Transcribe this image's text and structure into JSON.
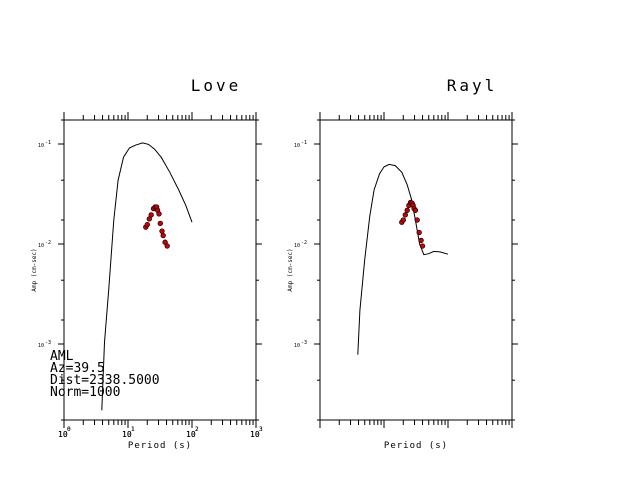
{
  "chart_data": [
    {
      "type": "line",
      "title": "Love",
      "xlabel": "Period (s)",
      "ylabel": "Amp (cm-sec)",
      "x_scale": "log",
      "y_scale": "log",
      "xlim": [
        1,
        1000
      ],
      "ylim": [
        0.0002,
        0.2
      ],
      "x_ticks": [
        "10",
        "10",
        "10",
        "10"
      ],
      "x_tick_exponents": [
        "0",
        "1",
        "2",
        "3"
      ],
      "y_ticks": [
        "10",
        "10",
        "10"
      ],
      "y_tick_exponents": [
        "-1",
        "-2",
        "-3"
      ],
      "series": [
        {
          "kind": "line",
          "color": "#000000",
          "points": [
            [
              3.9,
              0.00025
            ],
            [
              4.3,
              0.0012
            ],
            [
              5.0,
              0.004
            ],
            [
              6.0,
              0.02
            ],
            [
              7.0,
              0.05
            ],
            [
              8.5,
              0.085
            ],
            [
              10.5,
              0.105
            ],
            [
              13,
              0.112
            ],
            [
              17,
              0.118
            ],
            [
              21,
              0.114
            ],
            [
              26,
              0.102
            ],
            [
              33,
              0.085
            ],
            [
              45,
              0.06
            ],
            [
              62,
              0.04
            ],
            [
              80,
              0.028
            ],
            [
              100,
              0.019
            ]
          ]
        },
        {
          "kind": "points",
          "color": "#cc0000",
          "points": [
            [
              19,
              0.017
            ],
            [
              20,
              0.018
            ],
            [
              21.5,
              0.0205
            ],
            [
              23,
              0.0225
            ],
            [
              25,
              0.026
            ],
            [
              26.5,
              0.027
            ],
            [
              28,
              0.027
            ],
            [
              29,
              0.025
            ],
            [
              30.5,
              0.023
            ],
            [
              32,
              0.0185
            ],
            [
              34,
              0.0155
            ],
            [
              35.5,
              0.014
            ],
            [
              38,
              0.012
            ],
            [
              41,
              0.011
            ]
          ]
        }
      ],
      "annotations": [
        "AML",
        "Az=39.5",
        "Dist=2338.5000",
        "Norm=1000"
      ]
    },
    {
      "type": "line",
      "title": "Rayl",
      "xlabel": "Period (s)",
      "ylabel": "Amp (cm-sec)",
      "x_scale": "log",
      "y_scale": "log",
      "xlim": [
        1,
        1000
      ],
      "ylim": [
        0.0002,
        0.2
      ],
      "x_ticks": [
        "10",
        "10",
        "10",
        "10"
      ],
      "x_tick_exponents": [
        "0",
        "1",
        "2",
        "3"
      ],
      "y_ticks": [
        "10",
        "10",
        "10"
      ],
      "y_tick_exponents": [
        "-1",
        "-2",
        "-3"
      ],
      "series": [
        {
          "kind": "line",
          "color": "#000000",
          "points": [
            [
              3.9,
              0.0009
            ],
            [
              4.2,
              0.0025
            ],
            [
              5.0,
              0.008
            ],
            [
              6.0,
              0.022
            ],
            [
              7.0,
              0.04
            ],
            [
              8.5,
              0.058
            ],
            [
              10,
              0.068
            ],
            [
              12,
              0.072
            ],
            [
              15,
              0.07
            ],
            [
              19,
              0.06
            ],
            [
              23,
              0.045
            ],
            [
              27,
              0.032
            ],
            [
              31,
              0.02
            ],
            [
              36,
              0.0115
            ],
            [
              42,
              0.009
            ],
            [
              50,
              0.0092
            ],
            [
              60,
              0.0097
            ],
            [
              75,
              0.0096
            ],
            [
              100,
              0.0091
            ]
          ]
        },
        {
          "kind": "points",
          "color": "#cc0000",
          "points": [
            [
              19,
              0.019
            ],
            [
              20,
              0.02
            ],
            [
              21.5,
              0.0225
            ],
            [
              23,
              0.025
            ],
            [
              24.5,
              0.028
            ],
            [
              26,
              0.03
            ],
            [
              27.5,
              0.0295
            ],
            [
              28.5,
              0.028
            ],
            [
              29.5,
              0.026
            ],
            [
              31,
              0.025
            ],
            [
              33,
              0.02
            ],
            [
              35.5,
              0.015
            ],
            [
              38,
              0.0125
            ],
            [
              40,
              0.011
            ]
          ]
        }
      ]
    }
  ]
}
